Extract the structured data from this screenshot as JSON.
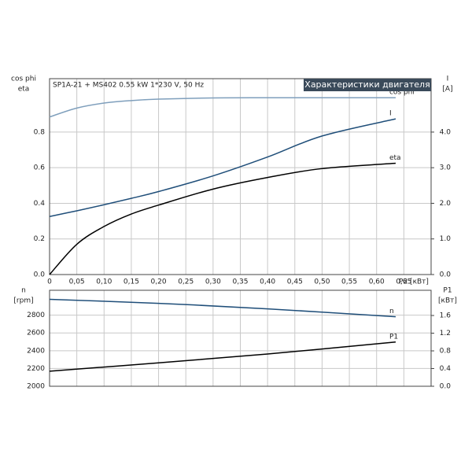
{
  "chart_data": [
    {
      "type": "line",
      "title": "SP1A-21 + MS402  0.55 kW  1*230 V, 50 Hz",
      "subtitle": "Характеристики двигателя",
      "x_label": "P2 [кВт]",
      "y_label": [
        "cos phi",
        "eta"
      ],
      "y2_label": [
        "I",
        "[A]"
      ],
      "x": [
        0,
        0.05,
        0.1,
        0.15,
        0.2,
        0.3,
        0.4,
        0.5,
        0.635
      ],
      "xlim": [
        0,
        0.7
      ],
      "xticks": [
        0,
        {
          "value": 0.05,
          "label": "0,05"
        },
        {
          "value": 0.1,
          "label": "0,10"
        },
        {
          "value": 0.15,
          "label": "0,15"
        },
        {
          "value": 0.2,
          "label": "0,20"
        },
        {
          "value": 0.25,
          "label": "0,25"
        },
        {
          "value": 0.3,
          "label": "0,30"
        },
        {
          "value": 0.35,
          "label": "0,35"
        },
        {
          "value": 0.4,
          "label": "0,40"
        },
        {
          "value": 0.45,
          "label": "0,45"
        },
        {
          "value": 0.5,
          "label": "0,50"
        },
        {
          "value": 0.55,
          "label": "0,55"
        },
        {
          "value": 0.6,
          "label": "0,60"
        },
        {
          "value": 0.65,
          "label": "0,65"
        }
      ],
      "ylim": [
        0,
        1.1
      ],
      "yticks": [
        {
          "value": 0,
          "label": "0.0"
        },
        {
          "value": 0.2,
          "label": "0.2"
        },
        {
          "value": 0.4,
          "label": "0.4"
        },
        {
          "value": 0.6,
          "label": "0.6"
        },
        {
          "value": 0.8,
          "label": "0.8"
        }
      ],
      "y2lim": [
        0,
        5.5
      ],
      "y2ticks": [
        {
          "value": 0,
          "label": "0.0"
        },
        {
          "value": 1,
          "label": "1.0"
        },
        {
          "value": 2,
          "label": "2.0"
        },
        {
          "value": 3,
          "label": "3.0"
        },
        {
          "value": 4,
          "label": "4.0"
        }
      ],
      "grid": true,
      "series": [
        {
          "name": "cos phi",
          "color": "#7f9fbc",
          "values": [
            0.885,
            0.935,
            0.963,
            0.977,
            0.985,
            0.992,
            0.993,
            0.993,
            0.993
          ]
        },
        {
          "name": "I",
          "color": "#1f4e79",
          "axis": "y2",
          "values": [
            1.63,
            1.79,
            1.96,
            2.14,
            2.33,
            2.77,
            3.3,
            3.89,
            4.37
          ]
        },
        {
          "name": "eta",
          "color": "#000000",
          "values": [
            0,
            0.17,
            0.27,
            0.34,
            0.39,
            0.48,
            0.545,
            0.595,
            0.625
          ]
        }
      ]
    },
    {
      "type": "line",
      "y_label": [
        "n",
        "[rpm]"
      ],
      "y2_label": [
        "P1",
        "[кВт]"
      ],
      "x": [
        0,
        0.2,
        0.4,
        0.635
      ],
      "ylim": [
        2000,
        3080
      ],
      "yticks": [
        2000,
        2200,
        2400,
        2600,
        2800
      ],
      "y2lim": [
        0,
        2.17
      ],
      "y2ticks": [
        {
          "value": 0,
          "label": "0.0"
        },
        {
          "value": 0.4,
          "label": "0.4"
        },
        {
          "value": 0.8,
          "label": "0.8"
        },
        {
          "value": 1.2,
          "label": "1.2"
        },
        {
          "value": 1.6,
          "label": "1.6"
        }
      ],
      "grid": true,
      "series": [
        {
          "name": "n",
          "color": "#1f4e79",
          "values": [
            2978,
            2933,
            2871,
            2782
          ]
        },
        {
          "name": "P1",
          "color": "#000000",
          "axis": "y2",
          "values": [
            0.34,
            0.53,
            0.73,
            1.0
          ]
        }
      ]
    }
  ]
}
